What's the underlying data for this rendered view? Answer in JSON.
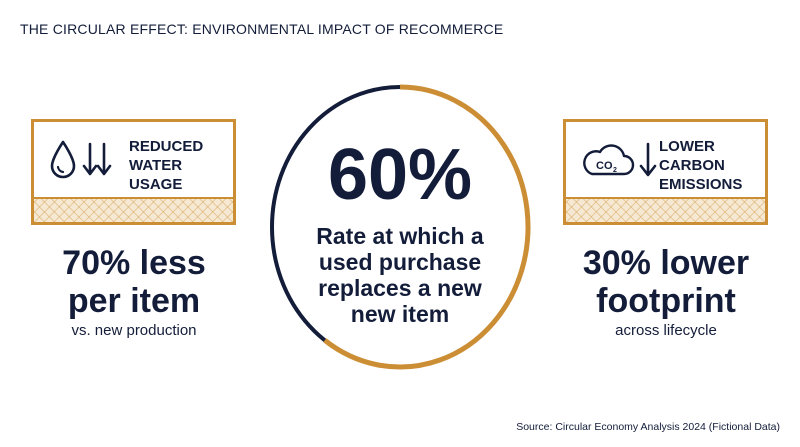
{
  "title": "THE CIRCULAR EFFECT: ENVIRONMENTAL IMPACT OF RECOMMERCE",
  "colors": {
    "navy": "#131d3a",
    "gold": "#cc8e35",
    "ring_track": "#ffffff"
  },
  "center": {
    "value": "60%",
    "description": "Rate at which a\nused purchase\nreplaces a new\nnew item",
    "ring_fill_fraction": 0.6
  },
  "left": {
    "card_label": "REDUCED\nWATER\nUSAGE",
    "icons": [
      "water-drop-icon",
      "double-down-arrow-icon"
    ],
    "stat": "70% less\nper item",
    "subtitle": "vs. new production"
  },
  "right": {
    "card_label": "LOWER\nCARBON\nEMISSIONS",
    "icons": [
      "co2-cloud-icon",
      "down-arrow-icon"
    ],
    "co2_text": "CO",
    "co2_sub": "2",
    "stat": "30% lower\nfootprint",
    "subtitle": "across lifecycle"
  },
  "source": "Source: Circular Economy Analysis 2024 (Fictional Data)"
}
